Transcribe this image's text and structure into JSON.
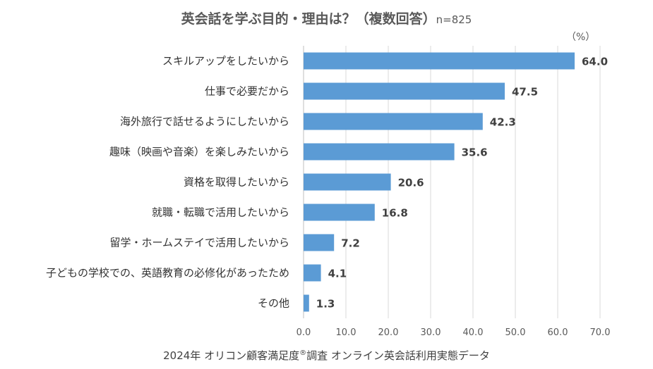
{
  "title": {
    "main": "英会話を学ぶ目的・理由は？（複数回答）",
    "sample": "n=825"
  },
  "unit": "（%）",
  "source": {
    "prefix": "2024年 オリコン顧客満足度",
    "mark": "®",
    "suffix": "調査 オンライン英会話利用実態データ"
  },
  "colors": {
    "bar": "#5B9BD5",
    "grid": "#D9D9D9",
    "axis": "#BFBFBF"
  },
  "chart_data": {
    "type": "bar",
    "orientation": "horizontal",
    "categories": [
      "スキルアップをしたいから",
      "仕事で必要だから",
      "海外旅行で話せるようにしたいから",
      "趣味（映画や音楽）を楽しみたいから",
      "資格を取得したいから",
      "就職・転職で活用したいから",
      "留学・ホームステイで活用したいから",
      "子どもの学校での、英語教育の必修化があったため",
      "その他"
    ],
    "values": [
      64.0,
      47.5,
      42.3,
      35.6,
      20.6,
      16.8,
      7.2,
      4.1,
      1.3
    ],
    "value_labels": [
      "64.0",
      "47.5",
      "42.3",
      "35.6",
      "20.6",
      "16.8",
      "7.2",
      "4.1",
      "1.3"
    ],
    "xlim": [
      0,
      70
    ],
    "xticks": [
      "0.0",
      "10.0",
      "20.0",
      "30.0",
      "40.0",
      "50.0",
      "60.0",
      "70.0"
    ],
    "xlabel": "",
    "ylabel": "",
    "grid": true
  }
}
